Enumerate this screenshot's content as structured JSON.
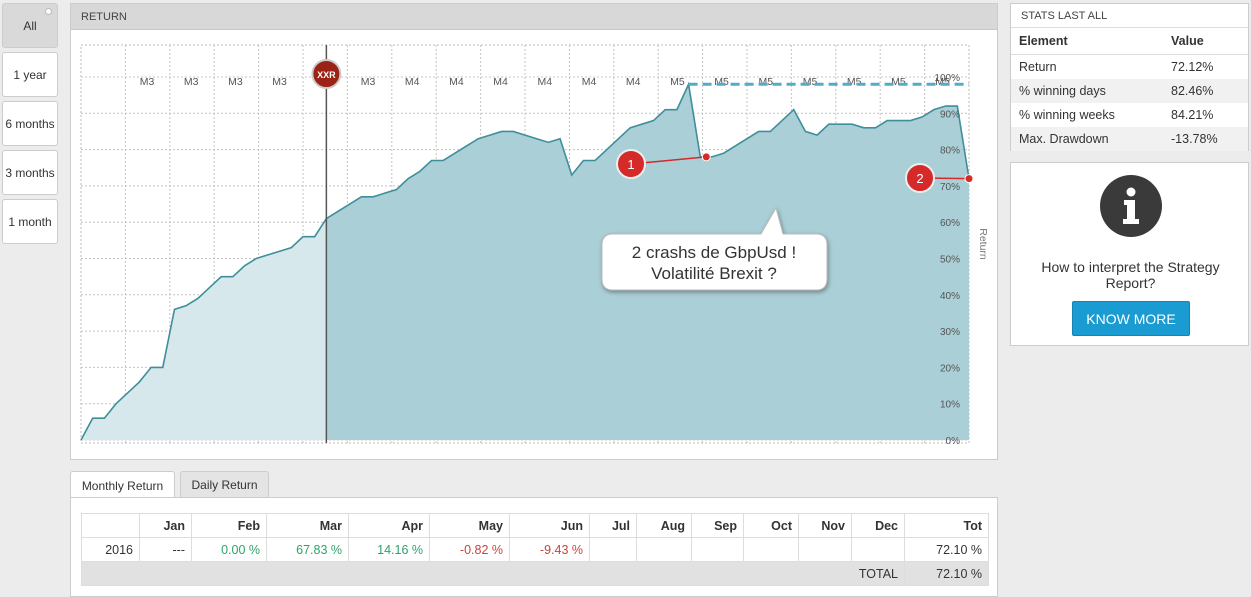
{
  "periods": [
    "All",
    "1 year",
    "6 months",
    "3 months",
    "1 month"
  ],
  "chart": {
    "header": "RETURN",
    "y_axis_title": "Return",
    "y_ticks": [
      "100%",
      "90%",
      "80%",
      "70%",
      "60%",
      "50%",
      "40%",
      "30%",
      "20%",
      "10%",
      "0%"
    ],
    "marker_label": "XXR",
    "badge1": "1",
    "badge2": "2",
    "callout_line1": "2 crashs de GbpUsd !",
    "callout_line2": "Volatilité Brexit ?",
    "colors": {
      "line": "#3d8f9b",
      "fill_before": "#d6e8eb",
      "fill_after": "#aacfd6",
      "dashed": "#52abc8",
      "marker": "#9b2316",
      "badge": "#d42a2a"
    }
  },
  "chart_data": {
    "type": "area",
    "ylabel": "Return",
    "ylim": [
      0,
      100
    ],
    "x_labels": [
      "M3",
      "M3",
      "M3",
      "M3",
      "M3",
      "M3",
      "M4",
      "M4",
      "M4",
      "M4",
      "M4",
      "M4",
      "M5",
      "M5",
      "M5",
      "M5",
      "M5",
      "M5",
      "M5"
    ],
    "values": [
      0,
      6,
      6,
      10,
      13,
      16,
      20,
      20,
      36,
      37,
      39,
      42,
      45,
      45,
      48,
      50,
      51,
      52,
      53,
      56,
      56,
      61,
      63,
      65,
      67,
      67,
      68,
      69,
      72,
      74,
      77,
      77,
      79,
      81,
      83,
      84,
      85,
      85,
      84,
      83,
      82,
      83,
      73,
      77,
      77,
      80,
      83,
      86,
      87,
      88,
      91,
      91,
      98,
      78,
      78,
      79,
      81,
      83,
      85,
      85,
      88,
      91,
      85,
      84,
      87,
      87,
      87,
      86,
      86,
      88,
      88,
      88,
      89,
      91,
      92,
      92,
      72
    ],
    "dashed_high_water_mark": 98
  },
  "stats": {
    "title": "STATS LAST ALL",
    "head": {
      "element": "Element",
      "value": "Value"
    },
    "rows": [
      {
        "element": "Return",
        "value": "72.12%"
      },
      {
        "element": "% winning days",
        "value": "82.46%"
      },
      {
        "element": "% winning weeks",
        "value": "84.21%"
      },
      {
        "element": "Max. Drawdown",
        "value": "-13.78%"
      }
    ]
  },
  "info": {
    "icon": "info-icon",
    "text": "How to interpret the Strategy Report?",
    "button": "KNOW MORE"
  },
  "tabs": [
    "Monthly Return",
    "Daily Return"
  ],
  "monthly": {
    "headers": [
      "",
      "Jan",
      "Feb",
      "Mar",
      "Apr",
      "May",
      "Jun",
      "Jul",
      "Aug",
      "Sep",
      "Oct",
      "Nov",
      "Dec",
      "Tot"
    ],
    "row": [
      "2016",
      "---",
      "0.00 %",
      "67.83 %",
      "14.16 %",
      "-0.82 %",
      "-9.43 %",
      "",
      "",
      "",
      "",
      "",
      "",
      "72.10 %"
    ],
    "total_label": "TOTAL",
    "total_value": "72.10 %"
  }
}
